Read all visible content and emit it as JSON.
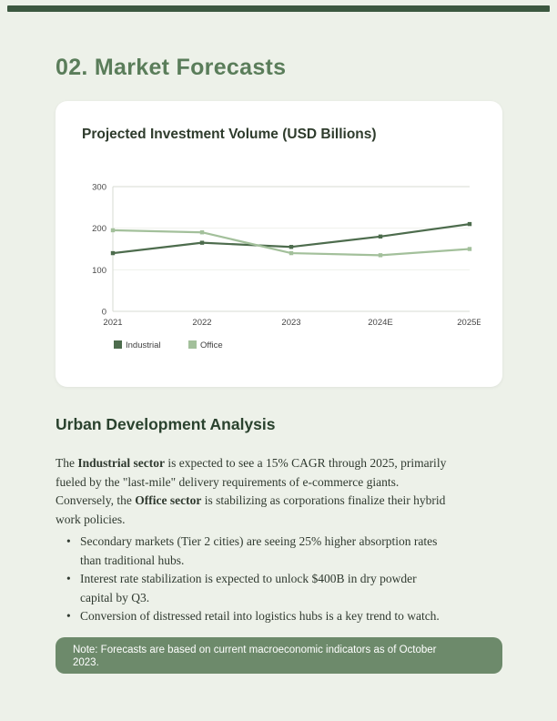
{
  "page": {
    "title": "02. Market Forecasts",
    "background_color": "#edf1e9",
    "accent_bar_color": "#3c5840",
    "title_color": "#5a7d5a"
  },
  "chart_data": {
    "type": "line",
    "title": "Projected Investment Volume (USD Billions)",
    "categories": [
      "2021",
      "2022",
      "2023",
      "2024E",
      "2025E"
    ],
    "series": [
      {
        "name": "Industrial",
        "color": "#4d6c4d",
        "values": [
          140,
          165,
          155,
          180,
          210
        ]
      },
      {
        "name": "Office",
        "color": "#a3c09b",
        "values": [
          195,
          190,
          140,
          135,
          150
        ]
      }
    ],
    "xlabel": "",
    "ylabel": "",
    "ylim": [
      0,
      300
    ],
    "yticks": [
      0,
      100,
      200,
      300
    ],
    "grid": "horizontal",
    "legend_position": "bottom-left"
  },
  "analysis": {
    "heading": "Urban Development Analysis",
    "paragraph_lines": [
      [
        {
          "t": "The ",
          "b": false
        },
        {
          "t": "Industrial sector",
          "b": true
        },
        {
          "t": " is expected to see a 15% CAGR through 2025, primarily",
          "b": false
        }
      ],
      [
        {
          "t": "fueled by the \"last-mile\" delivery requirements of e-commerce giants.",
          "b": false
        }
      ],
      [
        {
          "t": "Conversely, the ",
          "b": false
        },
        {
          "t": "Office sector",
          "b": true
        },
        {
          "t": " is stabilizing as corporations finalize their hybrid",
          "b": false
        }
      ],
      [
        {
          "t": "work policies.",
          "b": false
        }
      ]
    ],
    "bullets": [
      "Secondary markets (Tier 2 cities) are seeing 25% higher absorption rates\nthan traditional hubs.",
      "Interest rate stabilization is expected to unlock $400B in dry powder\ncapital by Q3.",
      "Conversion of distressed retail into logistics hubs is a key trend to watch."
    ]
  },
  "note": {
    "text": "Note: Forecasts are based on current macroeconomic indicators as of October\n2023.",
    "background_color": "#6d8a6b"
  }
}
